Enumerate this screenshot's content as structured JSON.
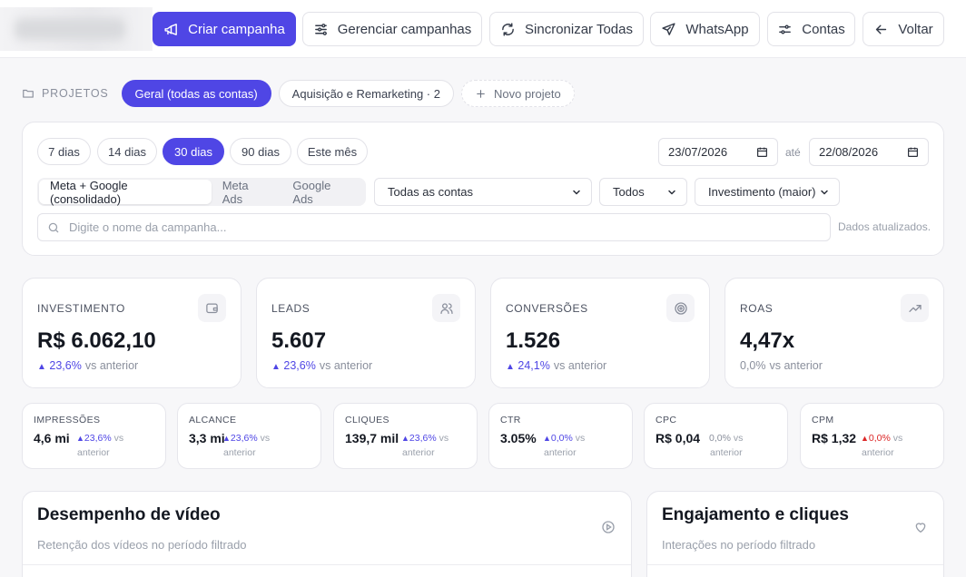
{
  "toolbar": {
    "create": "Criar campanha",
    "manage": "Gerenciar campanhas",
    "sync": "Sincronizar Todas",
    "whatsapp": "WhatsApp",
    "accounts": "Contas",
    "back": "Voltar"
  },
  "projects": {
    "label": "PROJETOS",
    "items": [
      "Geral (todas as contas)",
      "Aquisição e Remarketing · 2"
    ],
    "new": "Novo projeto"
  },
  "filters": {
    "periods": [
      "7 dias",
      "14 dias",
      "30 dias",
      "90 dias",
      "Este mês"
    ],
    "date_from": "23/07/2026",
    "date_sep": "até",
    "date_to": "22/08/2026",
    "platforms": [
      "Meta + Google (consolidado)",
      "Meta Ads",
      "Google Ads"
    ],
    "account_select": "Todas as contas",
    "status_select": "Todos",
    "sort_select": "Investimento (maior)",
    "search_placeholder": "Digite o nome da campanha...",
    "updated": "Dados atualizados."
  },
  "kpis": [
    {
      "label": "INVESTIMENTO",
      "value": "R$ 6.062,10",
      "delta": "23,6%",
      "trend": "up",
      "vs": "vs anterior",
      "icon": "wallet-icon"
    },
    {
      "label": "LEADS",
      "value": "5.607",
      "delta": "23,6%",
      "trend": "up",
      "vs": "vs anterior",
      "icon": "users-icon"
    },
    {
      "label": "CONVERSÕES",
      "value": "1.526",
      "delta": "24,1%",
      "trend": "up",
      "vs": "vs anterior",
      "icon": "target-icon"
    },
    {
      "label": "ROAS",
      "value": "4,47x",
      "delta": "0,0%",
      "trend": "neutral",
      "vs": "vs anterior",
      "icon": "trending-up-icon"
    }
  ],
  "metrics": [
    {
      "label": "IMPRESSÕES",
      "value": "4,6 mi",
      "delta": "23,6%",
      "trend": "up",
      "vs": "vs",
      "vs2": "anterior"
    },
    {
      "label": "ALCANCE",
      "value": "3,3 mi",
      "delta": "23,6%",
      "trend": "up",
      "vs": "vs",
      "vs2": "anterior"
    },
    {
      "label": "CLIQUES",
      "value": "139,7 mil",
      "delta": "23,6%",
      "trend": "up",
      "vs": "vs",
      "vs2": "anterior"
    },
    {
      "label": "CTR",
      "value": "3.05%",
      "delta": "0,0%",
      "trend": "up",
      "vs": "vs",
      "vs2": "anterior"
    },
    {
      "label": "CPC",
      "value": "R$ 0,04",
      "delta": "0,0%",
      "trend": "neutral",
      "vs": "vs",
      "vs2": "anterior"
    },
    {
      "label": "CPM",
      "value": "R$ 1,32",
      "delta": "0,0%",
      "trend": "down",
      "vs": "vs",
      "vs2": "anterior"
    }
  ],
  "panels": [
    {
      "title": "Desempenho de vídeo",
      "subtitle": "Retenção dos vídeos no período filtrado",
      "icon": "play-circle-icon"
    },
    {
      "title": "Engajamento e cliques",
      "subtitle": "Interações no período filtrado",
      "icon": "heart-icon"
    }
  ],
  "colors": {
    "accent": "#4f46e5",
    "negative": "#dc2626",
    "muted": "#8a8f9c"
  }
}
